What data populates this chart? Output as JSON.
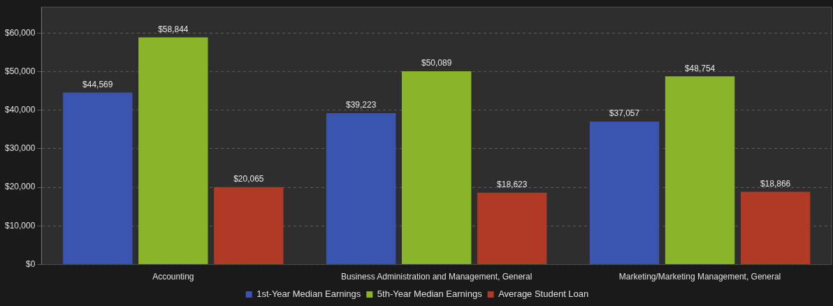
{
  "chart_data": {
    "type": "bar",
    "categories": [
      "Accounting",
      "Business Administration and Management, General",
      "Marketing/Marketing Management, General"
    ],
    "series": [
      {
        "name": "1st-Year Median Earnings",
        "color": "#3a55b0",
        "values": [
          44569,
          39223,
          37057
        ],
        "value_labels": [
          "$44,569",
          "$39,223",
          "$37,057"
        ]
      },
      {
        "name": "5th-Year Median Earnings",
        "color": "#8ab52a",
        "values": [
          58844,
          50089,
          48754
        ],
        "value_labels": [
          "$58,844",
          "$50,089",
          "$48,754"
        ]
      },
      {
        "name": "Average Student Loan",
        "color": "#b03a25",
        "values": [
          20065,
          18623,
          18866
        ],
        "value_labels": [
          "$20,065",
          "$18,623",
          "$18,866"
        ]
      }
    ],
    "ylim": [
      0,
      66700
    ],
    "yticks": [
      {
        "value": 0,
        "label": "$0"
      },
      {
        "value": 10000,
        "label": "$10,000"
      },
      {
        "value": 20000,
        "label": "$20,000"
      },
      {
        "value": 30000,
        "label": "$30,000"
      },
      {
        "value": 40000,
        "label": "$40,000"
      },
      {
        "value": 50000,
        "label": "$50,000"
      },
      {
        "value": 60000,
        "label": "$60,000"
      }
    ],
    "grid": "y",
    "legend": "bottom"
  }
}
